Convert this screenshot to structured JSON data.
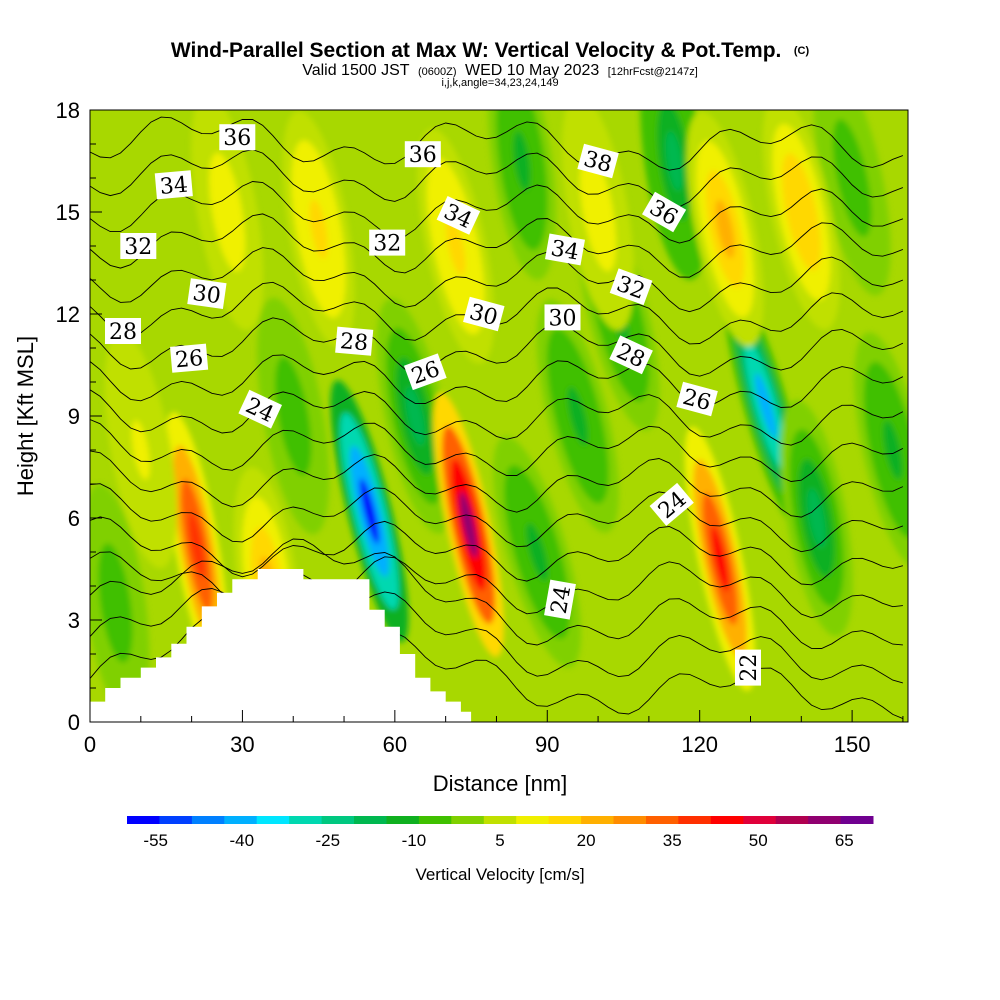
{
  "chart_data": {
    "type": "heatmap",
    "title": "Wind-Parallel Section at Max W: Vertical Velocity & Pot.Temp.",
    "title_mark": "(C)",
    "subtitle_lead": "Valid 1500 JST",
    "subtitle_z": "(0600Z)",
    "subtitle_date": "WED 10 May 2023",
    "subtitle_fcst": "[12hrFcst@2147z]",
    "subtitle2": "i,j,k,angle=34,23,24,149",
    "xlabel": "Distance [nm]",
    "ylabel": "Height [Kft MSL]",
    "xlim": [
      0,
      161
    ],
    "ylim": [
      0,
      18
    ],
    "xticks": [
      0,
      30,
      60,
      90,
      120,
      150
    ],
    "yticks": [
      0,
      3,
      6,
      9,
      12,
      15,
      18
    ],
    "colorbar": {
      "label": "Vertical Velocity [cm/s]",
      "ticks": [
        -55,
        -40,
        -25,
        -10,
        5,
        20,
        35,
        50,
        65
      ],
      "range": [
        -60,
        70
      ],
      "colors": [
        "#0000ff",
        "#0040ff",
        "#0080ff",
        "#00b0ff",
        "#00e6ff",
        "#00d8b0",
        "#00c880",
        "#00b850",
        "#10b020",
        "#40c000",
        "#80d000",
        "#c0e000",
        "#f0f000",
        "#ffd800",
        "#ffb000",
        "#ff8c00",
        "#ff6000",
        "#ff3000",
        "#ff0000",
        "#e0003a",
        "#b00050",
        "#900070",
        "#700090"
      ]
    },
    "terrain": [
      [
        0,
        0.6
      ],
      [
        3,
        0.6
      ],
      [
        3,
        1.0
      ],
      [
        6,
        1.0
      ],
      [
        6,
        1.3
      ],
      [
        10,
        1.3
      ],
      [
        10,
        1.6
      ],
      [
        13,
        1.6
      ],
      [
        13,
        1.9
      ],
      [
        16,
        1.9
      ],
      [
        16,
        2.3
      ],
      [
        19,
        2.3
      ],
      [
        19,
        2.8
      ],
      [
        22,
        2.8
      ],
      [
        22,
        3.4
      ],
      [
        25,
        3.4
      ],
      [
        25,
        3.8
      ],
      [
        28,
        3.8
      ],
      [
        28,
        4.2
      ],
      [
        33,
        4.2
      ],
      [
        33,
        4.5
      ],
      [
        42,
        4.5
      ],
      [
        42,
        4.2
      ],
      [
        55,
        4.2
      ],
      [
        55,
        3.3
      ],
      [
        58,
        3.3
      ],
      [
        58,
        2.8
      ],
      [
        61,
        2.8
      ],
      [
        61,
        2.0
      ],
      [
        64,
        2.0
      ],
      [
        64,
        1.3
      ],
      [
        67,
        1.3
      ],
      [
        67,
        0.9
      ],
      [
        70,
        0.9
      ],
      [
        70,
        0.6
      ],
      [
        73,
        0.6
      ],
      [
        73,
        0.3
      ],
      [
        75,
        0.3
      ],
      [
        75,
        0
      ]
    ],
    "velocity_cells": [
      {
        "x": 21,
        "y": 5.2,
        "w": -10,
        "v": 40
      },
      {
        "x": 35,
        "y": 4.0,
        "w": -8,
        "v": 22
      },
      {
        "x": 55,
        "y": 6.2,
        "w": -14,
        "v": -55
      },
      {
        "x": 64,
        "y": 9.0,
        "w": -12,
        "v": -15
      },
      {
        "x": 74.5,
        "y": 5.8,
        "w": -12,
        "v": 60
      },
      {
        "x": 88,
        "y": 5.0,
        "w": -16,
        "v": -12
      },
      {
        "x": 96,
        "y": 9.0,
        "w": -14,
        "v": -10
      },
      {
        "x": 104,
        "y": 12.0,
        "w": -14,
        "v": -10
      },
      {
        "x": 115,
        "y": 16.5,
        "w": -8,
        "v": -20
      },
      {
        "x": 124,
        "y": 4.8,
        "w": -12,
        "v": 45
      },
      {
        "x": 133,
        "y": 9.3,
        "w": -16,
        "v": -40
      },
      {
        "x": 143,
        "y": 6.0,
        "w": -10,
        "v": -15
      },
      {
        "x": 150,
        "y": 16.0,
        "w": -12,
        "v": -6
      },
      {
        "x": 125,
        "y": 14.5,
        "w": -12,
        "v": 22
      },
      {
        "x": 140,
        "y": 15.0,
        "w": -12,
        "v": 18
      },
      {
        "x": 45,
        "y": 14.5,
        "w": -10,
        "v": 14
      },
      {
        "x": 72,
        "y": 14.0,
        "w": -12,
        "v": 16
      },
      {
        "x": 27,
        "y": 15.0,
        "w": -10,
        "v": 12
      },
      {
        "x": 100,
        "y": 15.0,
        "w": -10,
        "v": 12
      },
      {
        "x": 5,
        "y": 3.5,
        "w": -8,
        "v": -8
      },
      {
        "x": 10,
        "y": 8.0,
        "w": -10,
        "v": 8
      },
      {
        "x": 40,
        "y": 9.0,
        "w": -10,
        "v": -8
      },
      {
        "x": 158,
        "y": 8.0,
        "w": -12,
        "v": -12
      },
      {
        "x": 85,
        "y": 16.5,
        "w": -8,
        "v": -12
      }
    ],
    "theta_values": [
      22,
      23,
      24,
      25,
      26,
      27,
      28,
      29,
      30,
      31,
      32,
      33,
      34,
      35,
      36,
      37,
      38
    ],
    "contour_labels": [
      {
        "text": "36",
        "x": 29,
        "y": 17.2,
        "rot": 0
      },
      {
        "text": "34",
        "x": 16.5,
        "y": 15.8,
        "rot": -5
      },
      {
        "text": "32",
        "x": 9.5,
        "y": 14.0,
        "rot": 0
      },
      {
        "text": "30",
        "x": 23,
        "y": 12.6,
        "rot": 8
      },
      {
        "text": "28",
        "x": 6.5,
        "y": 11.5,
        "rot": 0
      },
      {
        "text": "26",
        "x": 19.5,
        "y": 10.7,
        "rot": -5
      },
      {
        "text": "24",
        "x": 33.5,
        "y": 9.2,
        "rot": 25
      },
      {
        "text": "28",
        "x": 52,
        "y": 11.2,
        "rot": 5
      },
      {
        "text": "26",
        "x": 66,
        "y": 10.3,
        "rot": -20
      },
      {
        "text": "32",
        "x": 58.5,
        "y": 14.1,
        "rot": 0
      },
      {
        "text": "34",
        "x": 72.5,
        "y": 14.9,
        "rot": 25
      },
      {
        "text": "36",
        "x": 65.5,
        "y": 16.7,
        "rot": 0
      },
      {
        "text": "30",
        "x": 77.5,
        "y": 12.0,
        "rot": 15
      },
      {
        "text": "30",
        "x": 93,
        "y": 11.9,
        "rot": 0
      },
      {
        "text": "34",
        "x": 93.5,
        "y": 13.9,
        "rot": 10
      },
      {
        "text": "38",
        "x": 100,
        "y": 16.5,
        "rot": 15
      },
      {
        "text": "32",
        "x": 106.5,
        "y": 12.8,
        "rot": 20
      },
      {
        "text": "36",
        "x": 113,
        "y": 15.0,
        "rot": 30
      },
      {
        "text": "28",
        "x": 106.5,
        "y": 10.8,
        "rot": 25
      },
      {
        "text": "26",
        "x": 119.5,
        "y": 9.5,
        "rot": 15
      },
      {
        "text": "24",
        "x": 114.5,
        "y": 6.4,
        "rot": -40
      },
      {
        "text": "24",
        "x": 92.5,
        "y": 3.6,
        "rot": -80
      },
      {
        "text": "22",
        "x": 129.5,
        "y": 1.6,
        "rot": -90
      }
    ]
  }
}
